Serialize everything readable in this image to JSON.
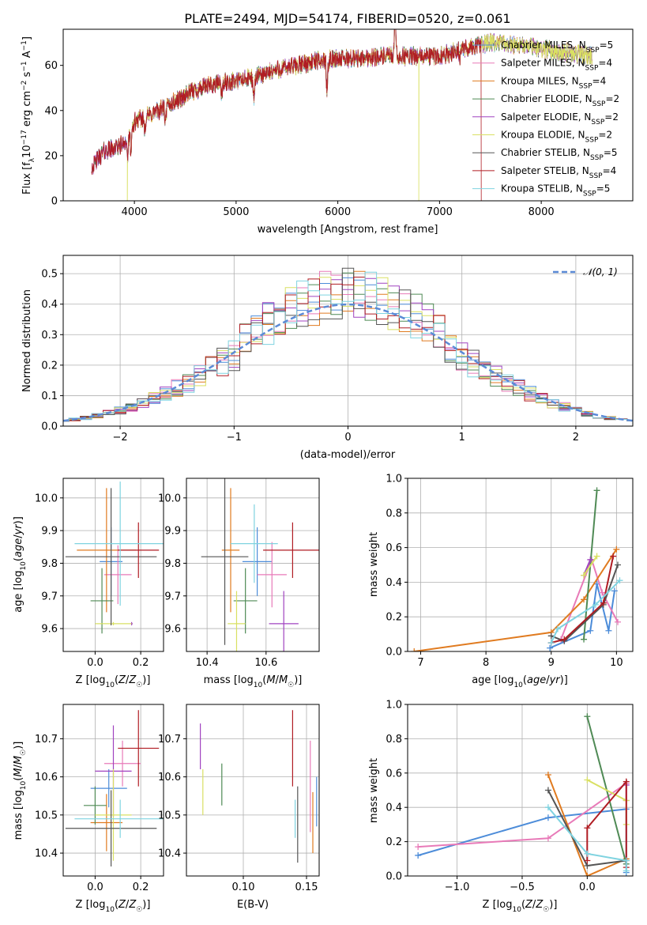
{
  "title": "PLATE=2494, MJD=54174, FIBERID=0520, z=0.061",
  "model_colors": [
    "#4c8cd9",
    "#e87ab8",
    "#e07b20",
    "#4f8a55",
    "#a043c0",
    "#d9e063",
    "#555555",
    "#b01c23",
    "#7fd3e0"
  ],
  "models": [
    {
      "label": "Chabrier MILES, N",
      "sub": "SSP",
      "tail": "=5"
    },
    {
      "label": "Salpeter MILES, N",
      "sub": "SSP",
      "tail": "=4"
    },
    {
      "label": "Kroupa MILES, N",
      "sub": "SSP",
      "tail": "=4"
    },
    {
      "label": "Chabrier ELODIE, N",
      "sub": "SSP",
      "tail": "=2"
    },
    {
      "label": "Salpeter ELODIE, N",
      "sub": "SSP",
      "tail": "=2"
    },
    {
      "label": "Kroupa ELODIE, N",
      "sub": "SSP",
      "tail": "=2"
    },
    {
      "label": "Chabrier STELIB, N",
      "sub": "SSP",
      "tail": "=5"
    },
    {
      "label": "Salpeter STELIB, N",
      "sub": "SSP",
      "tail": "=4"
    },
    {
      "label": "Kroupa STELIB, N",
      "sub": "SSP",
      "tail": "=5"
    }
  ],
  "normal_label": "𝒩(0, 1)",
  "chart_data": [
    {
      "type": "line",
      "panel": "spectrum",
      "xlabel": "wavelength [Angstrom, rest frame]",
      "ylabel": "Flux [f_λ 10^-17 erg cm^-2 s^-1 A^-1]",
      "xlim": [
        3300,
        8900
      ],
      "ylim": [
        0,
        76
      ],
      "xticks": [
        4000,
        5000,
        6000,
        7000,
        8000
      ],
      "yticks": [
        0,
        20,
        40,
        60
      ],
      "legend": "top-right",
      "continuum_knots": [
        [
          3580,
          15
        ],
        [
          3700,
          22
        ],
        [
          3850,
          24
        ],
        [
          3950,
          28
        ],
        [
          4000,
          35
        ],
        [
          4200,
          39
        ],
        [
          4400,
          44
        ],
        [
          4600,
          49
        ],
        [
          4800,
          52
        ],
        [
          5000,
          53
        ],
        [
          5200,
          55
        ],
        [
          5400,
          58
        ],
        [
          5600,
          60
        ],
        [
          5800,
          62
        ],
        [
          6000,
          63
        ],
        [
          6200,
          63
        ],
        [
          6400,
          64
        ],
        [
          6600,
          64
        ],
        [
          6800,
          64
        ],
        [
          7000,
          64
        ],
        [
          7200,
          67
        ],
        [
          7500,
          70
        ],
        [
          7800,
          69
        ],
        [
          8200,
          66
        ],
        [
          8500,
          64
        ]
      ],
      "absorption_lines": [
        [
          3933,
          8
        ],
        [
          3968,
          9
        ],
        [
          4102,
          5
        ],
        [
          4305,
          8
        ],
        [
          4861,
          6
        ],
        [
          5175,
          10
        ],
        [
          5893,
          14
        ],
        [
          6563,
          -18
        ],
        [
          7200,
          4
        ]
      ],
      "drops": [
        {
          "series": 5,
          "x": 3930
        },
        {
          "series": 5,
          "x": 6795
        },
        {
          "series": 7,
          "x": 7410
        }
      ]
    },
    {
      "type": "histogram",
      "panel": "residuals",
      "xlabel": "(data-model)/error",
      "ylabel": "Normed distribution",
      "xlim": [
        -2.5,
        2.5
      ],
      "ylim": [
        0,
        0.56
      ],
      "xticks": [
        -2,
        -1,
        0,
        1,
        2
      ],
      "yticks": [
        0.0,
        0.1,
        0.2,
        0.3,
        0.4,
        0.5
      ],
      "bin_width": 0.1,
      "legend": "top-right"
    },
    {
      "type": "errorbar",
      "panel": "age-vs-Z",
      "xlabel": "Z [log10(Z/Z☉)]",
      "ylabel": "age [log10(age/yr)]",
      "xlim": [
        -0.14,
        0.3
      ],
      "ylim": [
        9.53,
        10.06
      ],
      "xticks": [
        0.0,
        0.2
      ],
      "yticks": [
        9.6,
        9.7,
        9.8,
        9.9,
        10.0
      ],
      "points": [
        {
          "s": 0,
          "x": 0.07,
          "xe": 0.05,
          "y": 9.805,
          "ye": 0.105
        },
        {
          "s": 1,
          "x": 0.1,
          "xe": 0.06,
          "y": 9.765,
          "ye": 0.09
        },
        {
          "s": 2,
          "x": 0.05,
          "xe": 0.13,
          "y": 9.84,
          "ye": 0.19
        },
        {
          "s": 3,
          "x": 0.03,
          "xe": 0.05,
          "y": 9.685,
          "ye": 0.1
        },
        {
          "s": 4,
          "x": 0.16,
          "xe": 0.005,
          "y": 9.615,
          "ye": 0.005
        },
        {
          "s": 5,
          "x": 0.08,
          "xe": 0.08,
          "y": 9.615,
          "ye": 0.005
        },
        {
          "s": 6,
          "x": 0.07,
          "xe": 0.2,
          "y": 9.82,
          "ye": 0.21
        },
        {
          "s": 7,
          "x": 0.19,
          "xe": 0.09,
          "y": 9.84,
          "ye": 0.085
        },
        {
          "s": 8,
          "x": 0.11,
          "xe": 0.2,
          "y": 9.86,
          "ye": 0.19
        }
      ]
    },
    {
      "type": "errorbar",
      "panel": "age-vs-mass",
      "xlabel": "mass [log10(M/M☉)]",
      "xlim": [
        10.33,
        10.78
      ],
      "ylim": [
        9.53,
        10.06
      ],
      "xticks": [
        10.4,
        10.6
      ],
      "yticks": [
        9.6,
        9.7,
        9.8,
        9.9,
        10.0
      ],
      "points": [
        {
          "s": 0,
          "x": 10.57,
          "xe": 0.05,
          "y": 9.805,
          "ye": 0.105
        },
        {
          "s": 1,
          "x": 10.62,
          "xe": 0.05,
          "y": 9.765,
          "ye": 0.1
        },
        {
          "s": 2,
          "x": 10.48,
          "xe": 0.03,
          "y": 9.84,
          "ye": 0.19
        },
        {
          "s": 3,
          "x": 10.53,
          "xe": 0.04,
          "y": 9.685,
          "ye": 0.1
        },
        {
          "s": 4,
          "x": 10.66,
          "xe": 0.05,
          "y": 9.615,
          "ye": 0.1
        },
        {
          "s": 5,
          "x": 10.5,
          "xe": 0.03,
          "y": 9.615,
          "ye": 0.1
        },
        {
          "s": 6,
          "x": 10.46,
          "xe": 0.08,
          "y": 9.82,
          "ye": 0.27
        },
        {
          "s": 7,
          "x": 10.69,
          "xe": 0.1,
          "y": 9.84,
          "ye": 0.085
        },
        {
          "s": 8,
          "x": 10.56,
          "xe": 0.08,
          "y": 9.86,
          "ye": 0.12
        }
      ]
    },
    {
      "type": "line",
      "panel": "mass-weight-vs-age",
      "xlabel": "age [log10(age/yr)]",
      "ylabel": "mass weight",
      "xlim": [
        6.8,
        10.25
      ],
      "ylim": [
        0,
        1
      ],
      "xticks": [
        7,
        8,
        9,
        10
      ],
      "yticks": [
        0.0,
        0.2,
        0.4,
        0.6,
        0.8,
        1.0
      ],
      "series": [
        {
          "s": 0,
          "points": [
            [
              8.98,
              0.02
            ],
            [
              9.6,
              0.12
            ],
            [
              9.7,
              0.39
            ],
            [
              9.88,
              0.12
            ],
            [
              9.97,
              0.35
            ]
          ]
        },
        {
          "s": 1,
          "points": [
            [
              9.15,
              0.07
            ],
            [
              9.62,
              0.53
            ],
            [
              9.78,
              0.34
            ],
            [
              10.02,
              0.17
            ]
          ]
        },
        {
          "s": 2,
          "points": [
            [
              6.9,
              0.0
            ],
            [
              9.0,
              0.11
            ],
            [
              9.5,
              0.3
            ],
            [
              10.0,
              0.59
            ]
          ]
        },
        {
          "s": 3,
          "points": [
            [
              9.5,
              0.07
            ],
            [
              9.7,
              0.93
            ]
          ]
        },
        {
          "s": 4,
          "points": [
            [
              9.5,
              0.44
            ],
            [
              9.6,
              0.53
            ]
          ]
        },
        {
          "s": 5,
          "points": [
            [
              9.5,
              0.44
            ],
            [
              9.7,
              0.55
            ]
          ]
        },
        {
          "s": 6,
          "points": [
            [
              9.0,
              0.09
            ],
            [
              9.2,
              0.06
            ],
            [
              9.8,
              0.27
            ],
            [
              10.02,
              0.5
            ]
          ]
        },
        {
          "s": 7,
          "points": [
            [
              9.0,
              0.05
            ],
            [
              9.2,
              0.07
            ],
            [
              9.8,
              0.28
            ],
            [
              9.95,
              0.55
            ]
          ]
        },
        {
          "s": 8,
          "points": [
            [
              9.0,
              0.05
            ],
            [
              9.1,
              0.13
            ],
            [
              9.68,
              0.27
            ],
            [
              10.05,
              0.41
            ]
          ]
        }
      ]
    },
    {
      "type": "errorbar",
      "panel": "mass-vs-Z",
      "xlabel": "Z [log10(Z/Z☉)]",
      "ylabel": "mass [log10(M/M☉)]",
      "xlim": [
        -0.14,
        0.3
      ],
      "ylim": [
        10.34,
        10.79
      ],
      "xticks": [
        0.0,
        0.2
      ],
      "yticks": [
        10.4,
        10.5,
        10.6,
        10.7
      ],
      "points": [
        {
          "s": 0,
          "x": 0.06,
          "xe": 0.08,
          "y": 10.57,
          "ye": 0.05
        },
        {
          "s": 1,
          "x": 0.12,
          "xe": 0.08,
          "y": 10.635,
          "ye": 0.06
        },
        {
          "s": 2,
          "x": 0.05,
          "xe": 0.07,
          "y": 10.48,
          "ye": 0.075
        },
        {
          "s": 3,
          "x": 0.0,
          "xe": 0.05,
          "y": 10.525,
          "ye": 0.05
        },
        {
          "s": 4,
          "x": 0.08,
          "xe": 0.08,
          "y": 10.615,
          "ye": 0.12
        },
        {
          "s": 5,
          "x": 0.08,
          "xe": 0.08,
          "y": 10.5,
          "ye": 0.12
        },
        {
          "s": 6,
          "x": 0.07,
          "xe": 0.2,
          "y": 10.465,
          "ye": 0.1
        },
        {
          "s": 7,
          "x": 0.19,
          "xe": 0.09,
          "y": 10.675,
          "ye": 0.1
        },
        {
          "s": 8,
          "x": 0.11,
          "xe": 0.2,
          "y": 10.49,
          "ye": 0.05
        }
      ]
    },
    {
      "type": "errorbar",
      "panel": "mass-vs-EBV",
      "xlabel": "E(B-V)",
      "xlim": [
        0.055,
        0.16
      ],
      "ylim": [
        10.34,
        10.79
      ],
      "xticks": [
        0.1,
        0.15
      ],
      "yticks": [
        10.4,
        10.5,
        10.6,
        10.7
      ],
      "points": [
        {
          "s": 0,
          "x": 0.158,
          "xe": 0,
          "y": 10.535,
          "ye": 0.065
        },
        {
          "s": 1,
          "x": 0.153,
          "xe": 0,
          "y": 10.575,
          "ye": 0.12
        },
        {
          "s": 2,
          "x": 0.155,
          "xe": 0,
          "y": 10.48,
          "ye": 0.08
        },
        {
          "s": 3,
          "x": 0.083,
          "xe": 0,
          "y": 10.58,
          "ye": 0.055
        },
        {
          "s": 4,
          "x": 0.066,
          "xe": 0,
          "y": 10.68,
          "ye": 0.06
        },
        {
          "s": 5,
          "x": 0.068,
          "xe": 0,
          "y": 10.56,
          "ye": 0.06
        },
        {
          "s": 6,
          "x": 0.143,
          "xe": 0,
          "y": 10.475,
          "ye": 0.1
        },
        {
          "s": 7,
          "x": 0.139,
          "xe": 0,
          "y": 10.675,
          "ye": 0.1
        },
        {
          "s": 8,
          "x": 0.141,
          "xe": 0,
          "y": 10.49,
          "ye": 0.05
        }
      ]
    },
    {
      "type": "line",
      "panel": "mass-weight-vs-Z",
      "xlabel": "Z [log10(Z/Z☉)]",
      "ylabel": "mass weight",
      "xlim": [
        -1.38,
        0.35
      ],
      "ylim": [
        0,
        1
      ],
      "xticks": [
        -1.0,
        -0.5,
        0.0
      ],
      "yticks": [
        0.0,
        0.2,
        0.4,
        0.6,
        0.8,
        1.0
      ],
      "series": [
        {
          "s": 0,
          "points": [
            [
              -1.3,
              0.12
            ],
            [
              -0.3,
              0.34
            ],
            [
              0.3,
              0.39
            ],
            [
              0.3,
              0.02
            ]
          ]
        },
        {
          "s": 1,
          "points": [
            [
              -1.3,
              0.17
            ],
            [
              -0.3,
              0.22
            ],
            [
              0.3,
              0.54
            ]
          ]
        },
        {
          "s": 2,
          "points": [
            [
              -0.3,
              0.59
            ],
            [
              0.0,
              0.0
            ],
            [
              0.3,
              0.1
            ]
          ]
        },
        {
          "s": 3,
          "points": [
            [
              0.0,
              0.93
            ],
            [
              0.3,
              0.07
            ]
          ]
        },
        {
          "s": 4,
          "points": [
            [
              0.3,
              0.44
            ],
            [
              0.3,
              0.53
            ]
          ]
        },
        {
          "s": 5,
          "points": [
            [
              0.0,
              0.56
            ],
            [
              0.3,
              0.44
            ],
            [
              0.3,
              0.3
            ]
          ]
        },
        {
          "s": 6,
          "points": [
            [
              -0.3,
              0.5
            ],
            [
              0.0,
              0.06
            ],
            [
              0.3,
              0.09
            ]
          ]
        },
        {
          "s": 7,
          "points": [
            [
              0.0,
              0.09
            ],
            [
              0.0,
              0.28
            ],
            [
              0.3,
              0.55
            ],
            [
              0.3,
              0.05
            ]
          ]
        },
        {
          "s": 8,
          "points": [
            [
              -0.3,
              0.4
            ],
            [
              0.0,
              0.13
            ],
            [
              0.3,
              0.09
            ],
            [
              0.3,
              0.03
            ]
          ]
        }
      ]
    }
  ]
}
